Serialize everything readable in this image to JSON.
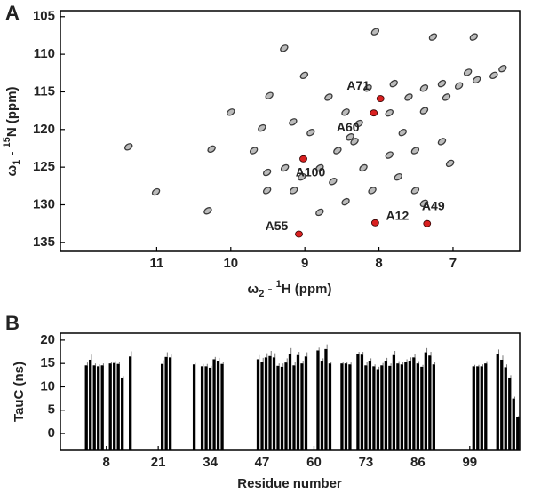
{
  "chart_data": [
    {
      "type": "scatter",
      "panel_label": "A",
      "xlabel": [
        "ω",
        "2",
        " - ",
        "1",
        "H (ppm)"
      ],
      "ylabel": [
        "ω",
        "1",
        " - ",
        "15",
        "N (ppm)"
      ],
      "xlim": [
        12.3,
        6.1
      ],
      "xticks": [
        11,
        10,
        9,
        8,
        7
      ],
      "ylim": [
        136.2,
        104.2
      ],
      "yticks": [
        105,
        110,
        115,
        120,
        125,
        130,
        135
      ],
      "color": "#3a3a3a",
      "x": [
        11.38,
        11.01,
        10.31,
        10.26,
        9.28,
        8.05,
        7.27,
        6.72,
        10.0,
        9.48,
        9.01,
        9.58,
        9.16,
        8.68,
        8.45,
        8.27,
        7.86,
        7.6,
        7.39,
        7.15,
        6.92,
        6.68,
        6.45,
        6.33,
        6.8,
        7.09,
        7.39,
        7.68,
        8.33,
        8.56,
        8.8,
        9.04,
        9.27,
        9.51,
        9.51,
        9.15,
        8.62,
        8.21,
        7.86,
        7.51,
        7.15,
        7.04,
        7.74,
        8.09,
        8.45,
        8.8,
        7.51,
        7.39,
        8.39,
        8.92,
        9.69,
        7.8,
        8.15
      ],
      "y": [
        122.3,
        128.3,
        130.8,
        122.6,
        109.2,
        107.0,
        107.7,
        107.7,
        117.7,
        115.5,
        112.8,
        119.8,
        119.0,
        115.7,
        117.7,
        119.2,
        117.8,
        115.7,
        114.5,
        113.9,
        114.2,
        113.4,
        112.8,
        111.9,
        112.4,
        115.7,
        117.5,
        120.4,
        121.6,
        122.8,
        125.1,
        126.3,
        125.1,
        125.7,
        128.1,
        128.1,
        126.9,
        125.1,
        123.4,
        122.8,
        121.6,
        124.5,
        126.3,
        128.1,
        129.6,
        131.0,
        128.1,
        129.8,
        121.0,
        120.4,
        122.8,
        113.9,
        114.5
      ],
      "highlighted": {
        "color": "#d92020",
        "labels": [
          "A71",
          "A60",
          "A100",
          "A55",
          "A12",
          "A49"
        ],
        "x": [
          7.98,
          8.07,
          9.02,
          9.08,
          8.05,
          7.35
        ],
        "y": [
          115.9,
          117.8,
          123.9,
          133.9,
          132.4,
          132.5
        ]
      }
    },
    {
      "type": "bar",
      "panel_label": "B",
      "xlabel": "Residue number",
      "ylabel": "TauC (ns)",
      "xlim": [
        -3.5,
        111.5
      ],
      "xticks": [
        8,
        21,
        34,
        47,
        60,
        73,
        86,
        99
      ],
      "ylim": [
        -3.6,
        21.5
      ],
      "yticks": [
        0,
        5,
        10,
        15,
        20
      ],
      "color": "#000000",
      "x": [
        3,
        4,
        5,
        6,
        7,
        9,
        10,
        11,
        12,
        14,
        22,
        23,
        24,
        30,
        32,
        33,
        34,
        35,
        36,
        37,
        46,
        47,
        48,
        49,
        50,
        51,
        52,
        53,
        54,
        55,
        56,
        57,
        58,
        61,
        62,
        63,
        64,
        67,
        68,
        69,
        71,
        72,
        73,
        74,
        75,
        76,
        77,
        78,
        79,
        80,
        81,
        82,
        83,
        84,
        85,
        86,
        87,
        88,
        89,
        90,
        100,
        101,
        102,
        103,
        106,
        107,
        108,
        109,
        110,
        111
      ],
      "values": [
        14.6,
        15.8,
        14.6,
        14.4,
        14.6,
        15,
        15.1,
        14.9,
        12,
        16.5,
        14.9,
        16.4,
        16.3,
        14.8,
        14.4,
        14.4,
        14.1,
        15.9,
        15.6,
        14.9,
        15.9,
        15.4,
        16.3,
        16.6,
        16.3,
        14.5,
        14.3,
        15.2,
        17,
        14.6,
        16.8,
        15,
        16.5,
        17.8,
        15.6,
        18.1,
        15,
        15,
        15,
        14.8,
        17.1,
        16.9,
        14.6,
        15.6,
        14.4,
        13.8,
        14.6,
        15.6,
        14.5,
        16.8,
        15,
        14.8,
        15.3,
        15.6,
        16.3,
        15,
        14.3,
        17.4,
        16.7,
        14.8,
        14.4,
        14.4,
        14.4,
        15,
        17.1,
        15.8,
        14.2,
        12,
        7.5,
        3.5
      ],
      "errors": [
        0.6,
        1.1,
        0.4,
        0.4,
        0.4,
        0.4,
        0.4,
        0.5,
        0.3,
        1.1,
        0.8,
        1.0,
        0.6,
        0.3,
        0.5,
        0.5,
        0.4,
        0.5,
        0.6,
        0.4,
        0.9,
        0.8,
        0.9,
        1.1,
        0.9,
        0.5,
        0.7,
        0.9,
        1.3,
        0.7,
        0.7,
        0.6,
        0.9,
        0.6,
        0.5,
        1.0,
        0.4,
        0.4,
        0.4,
        0.4,
        0.4,
        0.6,
        0.7,
        0.5,
        0.4,
        0.5,
        0.5,
        0.6,
        0.5,
        0.9,
        0.5,
        0.5,
        0.6,
        0.7,
        0.8,
        0.5,
        0.4,
        0.9,
        0.8,
        0.5,
        0.3,
        0.3,
        0.4,
        0.5,
        0.9,
        0.9,
        0.6,
        0.5,
        0.4,
        0.3
      ]
    }
  ]
}
